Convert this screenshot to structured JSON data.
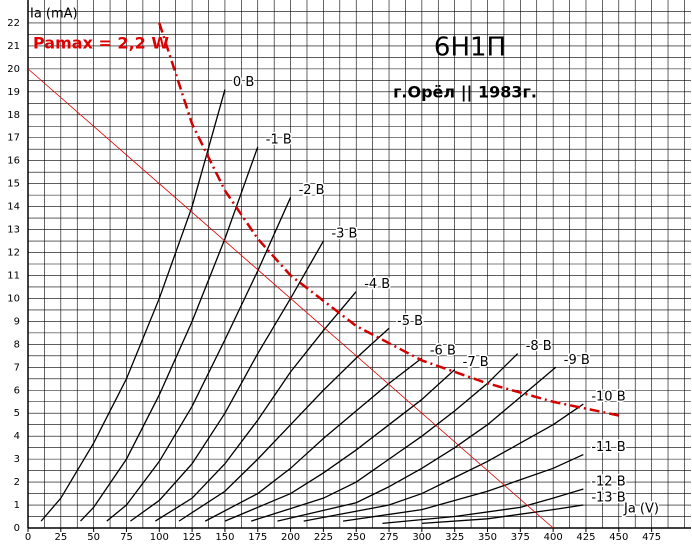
{
  "chart_data": {
    "type": "line",
    "title": "6Н1П",
    "subtitle": "г.Орёл || 1983г.",
    "y_label": "Ia (mA)",
    "x_label": "Ja (V)",
    "xlim": [
      0,
      505
    ],
    "ylim": [
      0,
      23
    ],
    "xticks": [
      0,
      25,
      50,
      75,
      100,
      125,
      150,
      175,
      200,
      225,
      250,
      275,
      300,
      325,
      350,
      375,
      400,
      425,
      450,
      475
    ],
    "yticks": [
      0,
      1,
      2,
      3,
      4,
      5,
      6,
      7,
      8,
      9,
      10,
      11,
      12,
      13,
      14,
      15,
      16,
      17,
      18,
      19,
      20,
      21,
      22
    ],
    "grid": true,
    "minor_grid": [
      12.5,
      0.5
    ],
    "series": [
      {
        "name": "0 В",
        "color": "#000000",
        "x": [
          10,
          25,
          50,
          75,
          100,
          125,
          150
        ],
        "values": [
          0.3,
          1.3,
          3.7,
          6.5,
          10,
          14,
          19.1
        ]
      },
      {
        "name": "-1 В",
        "color": "#000000",
        "x": [
          40,
          50,
          75,
          100,
          125,
          150,
          175
        ],
        "values": [
          0.3,
          0.9,
          3,
          5.8,
          9,
          12.6,
          16.6
        ]
      },
      {
        "name": "-2 В",
        "color": "#000000",
        "x": [
          60,
          75,
          100,
          125,
          150,
          175,
          200
        ],
        "values": [
          0.3,
          1,
          2.9,
          5.3,
          8.2,
          11.2,
          14.4
        ]
      },
      {
        "name": "-3 В",
        "color": "#000000",
        "x": [
          78,
          100,
          125,
          150,
          175,
          200,
          225
        ],
        "values": [
          0.3,
          1.2,
          2.8,
          5,
          7.6,
          10,
          12.5
        ]
      },
      {
        "name": "-4 В",
        "color": "#000000",
        "x": [
          97,
          125,
          150,
          175,
          200,
          225,
          250
        ],
        "values": [
          0.3,
          1.3,
          2.8,
          4.7,
          6.8,
          8.6,
          10.3
        ]
      },
      {
        "name": "-5 В",
        "color": "#000000",
        "x": [
          115,
          150,
          175,
          200,
          225,
          250,
          275
        ],
        "values": [
          0.3,
          1.6,
          3,
          4.5,
          6,
          7.4,
          8.7
        ]
      },
      {
        "name": "-6 В",
        "color": "#000000",
        "x": [
          135,
          175,
          200,
          225,
          250,
          275,
          300
        ],
        "values": [
          0.3,
          1.5,
          2.6,
          3.9,
          5.1,
          6.3,
          7.4
        ]
      },
      {
        "name": "-7 В",
        "color": "#000000",
        "x": [
          150,
          200,
          225,
          250,
          275,
          300,
          325
        ],
        "values": [
          0.3,
          1.5,
          2.4,
          3.4,
          4.5,
          5.6,
          6.9
        ]
      },
      {
        "name": "-8 В",
        "color": "#000000",
        "x": [
          170,
          225,
          250,
          275,
          300,
          325,
          350,
          373
        ],
        "values": [
          0.3,
          1.3,
          2,
          3,
          4,
          5.1,
          6.3,
          7.6
        ]
      },
      {
        "name": "-9 В",
        "color": "#000000",
        "x": [
          190,
          250,
          275,
          300,
          325,
          350,
          375,
          402
        ],
        "values": [
          0.3,
          1.1,
          1.8,
          2.6,
          3.5,
          4.5,
          5.7,
          7
        ]
      },
      {
        "name": "-10 В",
        "color": "#000000",
        "x": [
          210,
          275,
          300,
          325,
          350,
          375,
          400,
          423
        ],
        "values": [
          0.3,
          1,
          1.5,
          2.2,
          2.9,
          3.7,
          4.5,
          5.4
        ]
      },
      {
        "name": "-11 В",
        "color": "#000000",
        "x": [
          240,
          300,
          350,
          375,
          400,
          423
        ],
        "values": [
          0.3,
          0.8,
          1.6,
          2.1,
          2.6,
          3.2
        ]
      },
      {
        "name": "-12 В",
        "color": "#000000",
        "x": [
          270,
          325,
          375,
          400,
          423
        ],
        "values": [
          0.2,
          0.5,
          0.9,
          1.3,
          1.7
        ]
      },
      {
        "name": "-13 В",
        "color": "#000000",
        "x": [
          300,
          350,
          400,
          423
        ],
        "values": [
          0.2,
          0.4,
          0.8,
          1
        ]
      },
      {
        "color": "#e00000",
        "x": [
          0,
          400
        ],
        "values": [
          20,
          0
        ]
      },
      {
        "name": "Pamax = 2,2 W",
        "color": "#d40000",
        "dash": "10,4,2,4",
        "x": [
          100,
          125,
          150,
          175,
          200,
          250,
          300,
          350,
          400,
          450
        ],
        "values": [
          22,
          17.6,
          14.7,
          12.6,
          11,
          8.8,
          7.3,
          6.3,
          5.5,
          4.9
        ]
      }
    ]
  }
}
